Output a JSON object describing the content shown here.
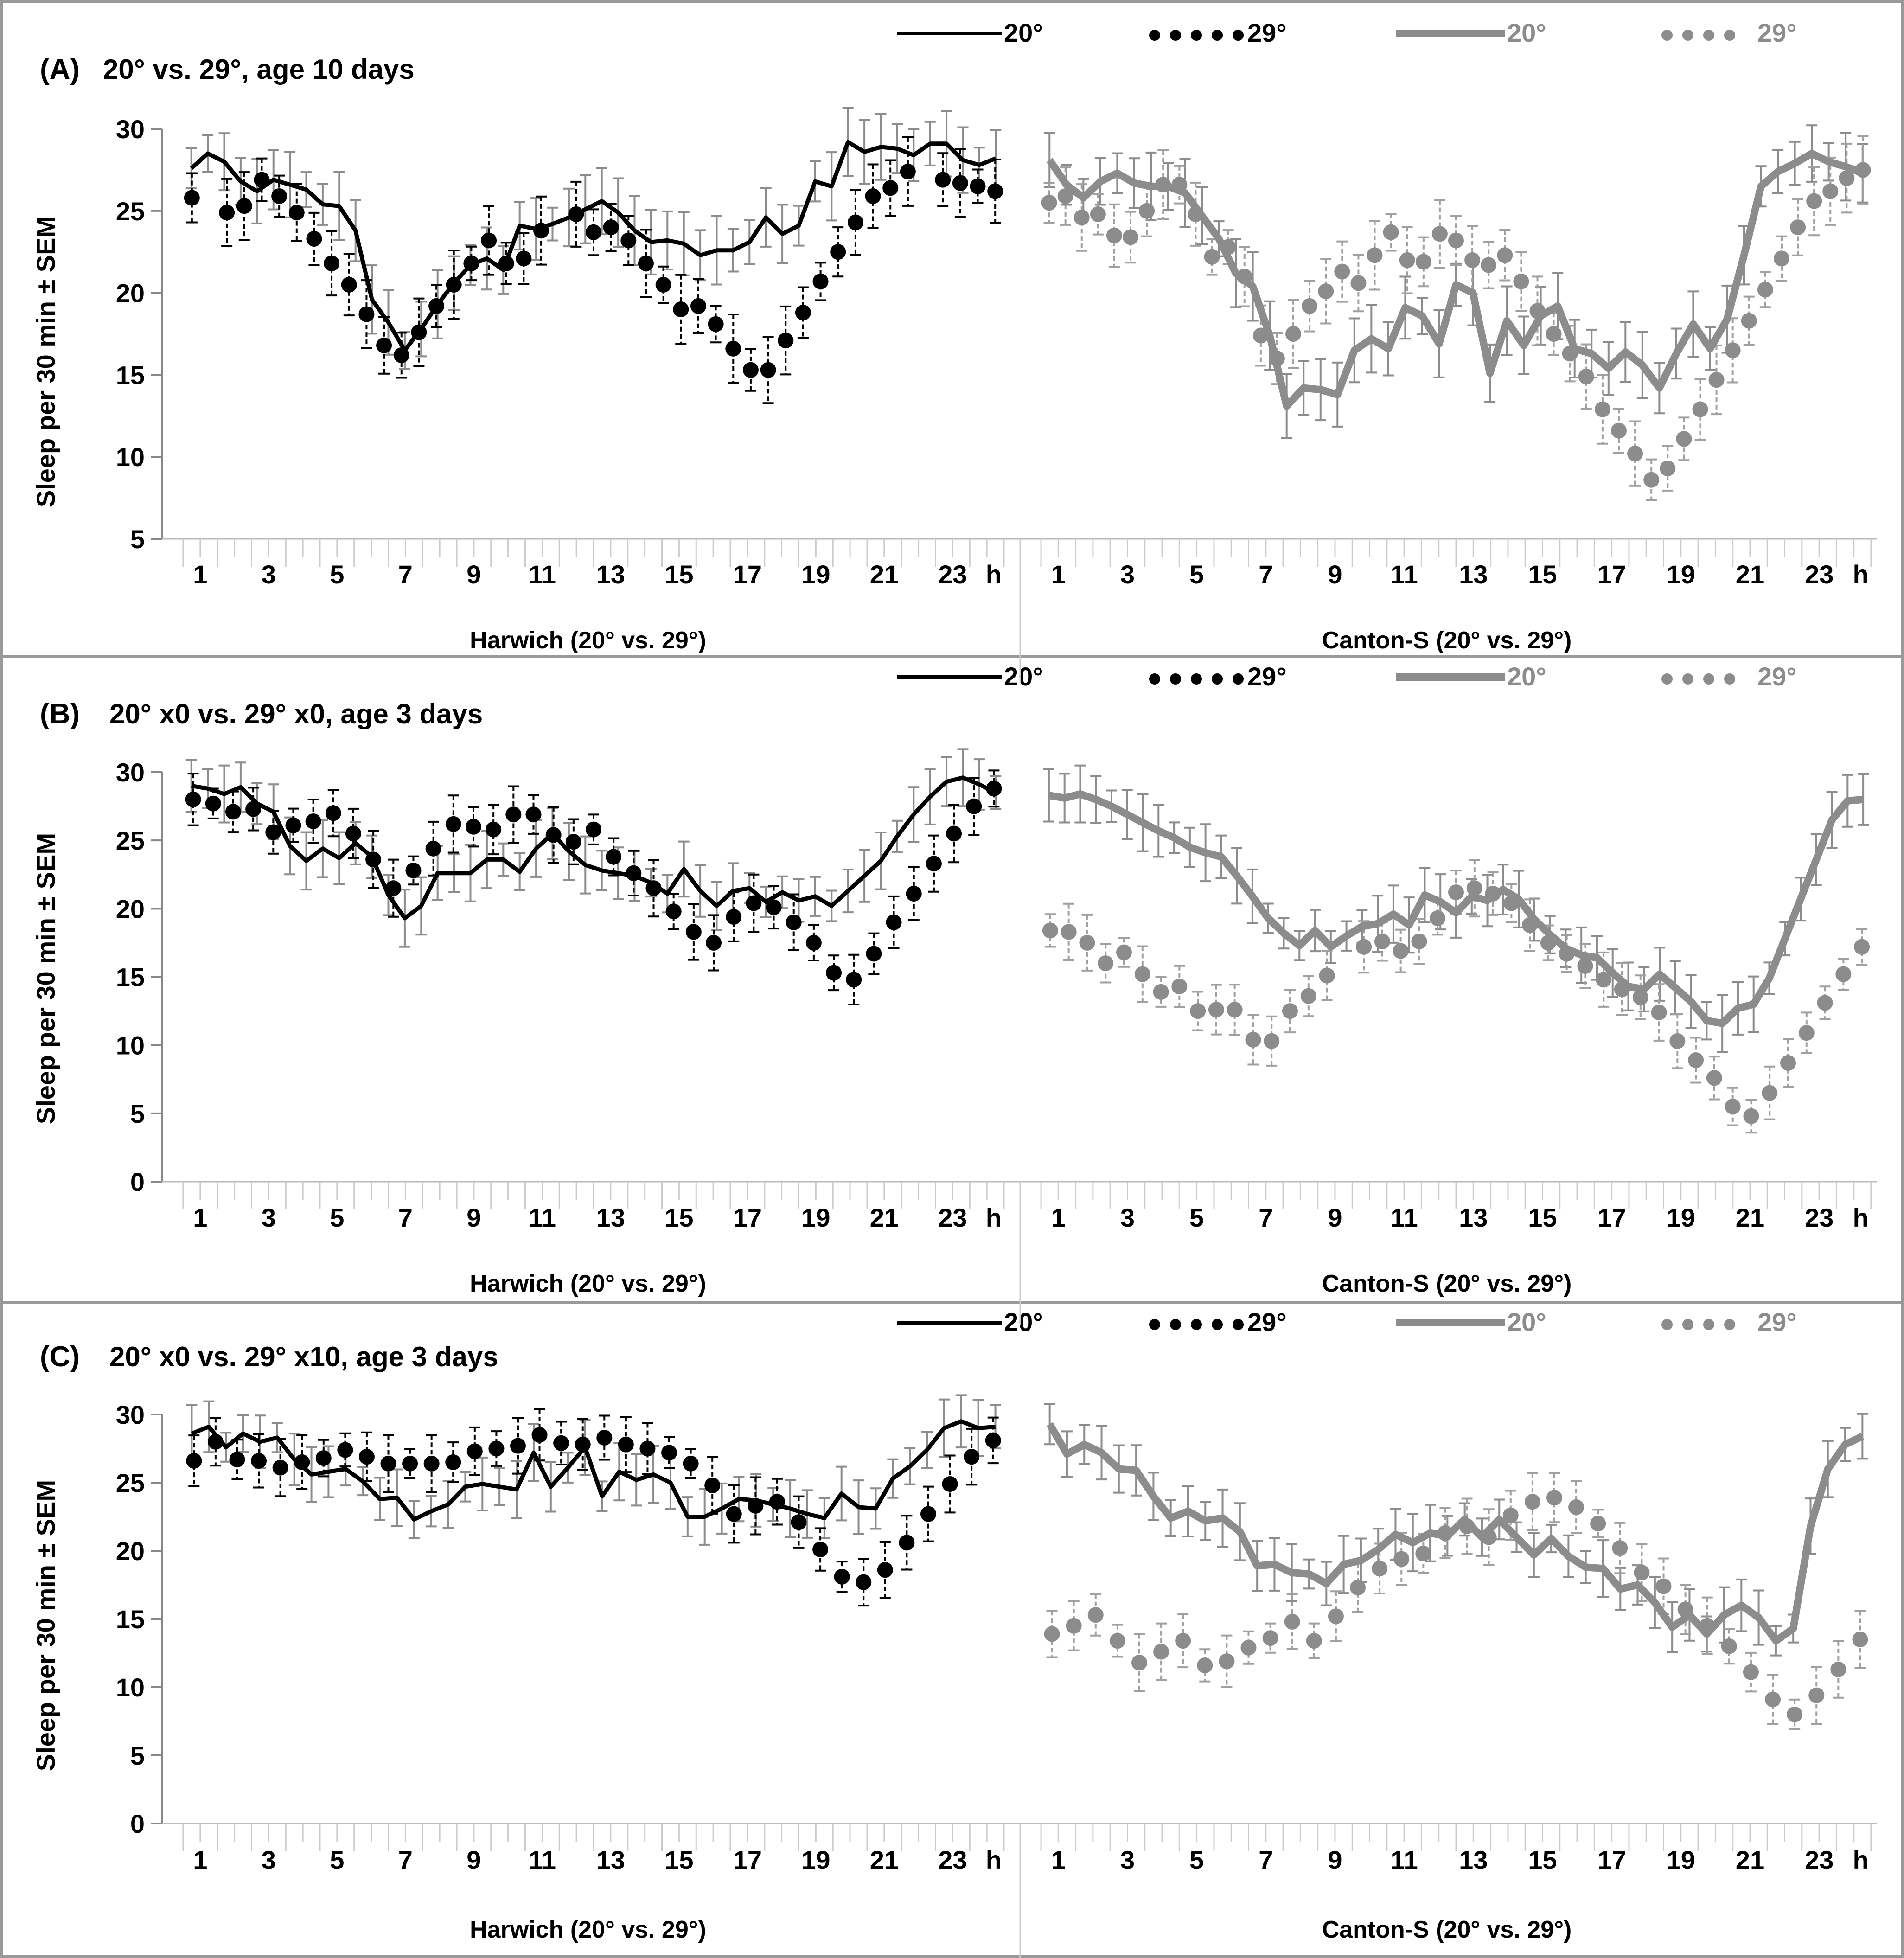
{
  "figure": {
    "y_axis_label": "Sleep per 30 min ± SEM",
    "hour_unit": "h"
  },
  "legend": [
    {
      "label": "20°",
      "style": "solid",
      "color": "#000000"
    },
    {
      "label": "29°",
      "style": "dots",
      "color": "#000000"
    },
    {
      "label": "20°",
      "style": "solid-thick",
      "color": "#8c8c8c"
    },
    {
      "label": "29°",
      "style": "dots",
      "color": "#8c8c8c"
    }
  ],
  "colors": {
    "harwich": "#000000",
    "canton": "#8c8c8c",
    "err_harwich_20": "#8c8c8c",
    "err_canton_29": "#a0a0a0"
  },
  "chart_data": [
    {
      "panel_label": "(A)",
      "title": "20° vs. 29°, age 10 days",
      "type": "line",
      "ylim": [
        5,
        30
      ],
      "yticks": [
        5,
        10,
        15,
        20,
        25,
        30
      ],
      "x_tick_labels": [
        "1",
        "3",
        "5",
        "7",
        "9",
        "11",
        "13",
        "15",
        "17",
        "19",
        "21",
        "23"
      ],
      "groups": [
        {
          "name": "Harwich (20° vs. 29°)",
          "series_20": [
            27.6,
            28.5,
            28.0,
            26.8,
            26.2,
            26.9,
            26.6,
            26.3,
            25.4,
            25.3,
            23.8,
            19.6,
            18.2,
            16.5,
            17.8,
            19.3,
            20.6,
            21.7,
            22.1,
            21.4,
            24.1,
            23.9,
            24.2,
            24.6,
            25.1,
            25.6,
            24.9,
            23.8,
            23.1,
            23.2,
            23.0,
            22.3,
            22.6,
            22.6,
            23.1,
            24.6,
            23.6,
            24.1,
            26.8,
            26.5,
            29.2,
            28.6,
            28.9,
            28.8,
            28.4,
            29.1,
            29.1,
            28.1,
            27.8,
            28.2
          ],
          "series_29": [
            25.8,
            null,
            24.9,
            25.3,
            26.9,
            25.9,
            24.9,
            23.3,
            21.8,
            20.5,
            18.7,
            16.8,
            16.2,
            17.6,
            19.2,
            20.5,
            21.8,
            23.2,
            21.8,
            22.1,
            23.8,
            null,
            24.8,
            23.7,
            24.0,
            23.2,
            21.8,
            20.5,
            19.0,
            19.2,
            18.1,
            16.6,
            15.3,
            15.3,
            17.1,
            18.8,
            20.7,
            22.5,
            24.3,
            25.9,
            26.4,
            27.4,
            null,
            26.9,
            26.7,
            26.5,
            26.2
          ]
        },
        {
          "name": "Canton-S (20° vs. 29°)",
          "series_20": [
            28.1,
            26.6,
            25.8,
            26.8,
            27.3,
            26.7,
            26.5,
            26.5,
            26.1,
            24.7,
            23.3,
            21.2,
            20.4,
            17.4,
            13.1,
            14.2,
            14.1,
            13.8,
            16.5,
            17.2,
            16.6,
            19.1,
            18.6,
            16.9,
            20.5,
            20.0,
            15.1,
            18.3,
            16.8,
            18.6,
            19.2,
            16.6,
            16.3,
            15.4,
            16.4,
            15.6,
            14.2,
            16.3,
            18.1,
            16.6,
            18.4,
            22.3,
            26.5,
            27.4,
            27.9,
            28.5,
            28.0,
            27.7,
            27.3
          ],
          "series_29": [
            25.5,
            25.9,
            24.6,
            24.8,
            23.5,
            23.4,
            25.0,
            26.6,
            26.6,
            24.8,
            22.2,
            22.8,
            21.0,
            17.4,
            16.0,
            17.5,
            19.2,
            20.1,
            21.3,
            20.6,
            22.3,
            23.7,
            22.0,
            21.9,
            23.6,
            23.2,
            22.0,
            21.7,
            22.3,
            20.7,
            18.9,
            17.5,
            16.3,
            14.9,
            12.9,
            11.6,
            10.2,
            8.6,
            9.3,
            11.1,
            12.9,
            14.7,
            16.5,
            18.3,
            20.2,
            22.1,
            24.0,
            25.6,
            26.2,
            27.0,
            27.5
          ]
        }
      ]
    },
    {
      "panel_label": "(B)",
      "title": "20° x0 vs. 29° x0, age 3 days",
      "type": "line",
      "ylim": [
        0,
        30
      ],
      "yticks": [
        0,
        5,
        10,
        15,
        20,
        25,
        30
      ],
      "x_tick_labels": [
        "1",
        "3",
        "5",
        "7",
        "9",
        "11",
        "13",
        "15",
        "17",
        "19",
        "21",
        "23"
      ],
      "groups": [
        {
          "name": "Harwich (20° vs. 29°)",
          "series_20": [
            29.0,
            28.8,
            28.4,
            28.9,
            27.7,
            27.1,
            24.6,
            23.5,
            24.4,
            23.7,
            24.8,
            23.8,
            21.0,
            19.3,
            20.2,
            22.6,
            22.6,
            22.6,
            23.6,
            23.6,
            22.7,
            24.4,
            25.5,
            24.2,
            23.2,
            22.8,
            22.6,
            22.4,
            21.9,
            21.1,
            22.9,
            21.3,
            20.2,
            21.3,
            21.5,
            20.5,
            21.2,
            20.6,
            20.9,
            20.2,
            21.3,
            22.4,
            23.5,
            25.3,
            26.9,
            28.2,
            29.3,
            29.6,
            29.1,
            28.5
          ],
          "series_29": [
            28.0,
            27.7,
            27.1,
            27.3,
            25.6,
            26.1,
            26.4,
            27.0,
            25.5,
            23.6,
            21.5,
            22.8,
            24.4,
            26.2,
            26.0,
            25.8,
            26.9,
            26.9,
            25.4,
            24.9,
            25.8,
            23.8,
            22.6,
            21.5,
            19.8,
            18.3,
            17.5,
            19.4,
            20.4,
            20.1,
            19.0,
            17.5,
            15.3,
            14.8,
            16.7,
            19.0,
            21.1,
            23.3,
            25.5,
            27.5,
            28.8
          ]
        },
        {
          "name": "Canton-S (20° vs. 29°)",
          "series_20": [
            28.3,
            28.1,
            28.4,
            28.0,
            27.5,
            26.9,
            26.3,
            25.7,
            25.2,
            24.5,
            24.1,
            23.8,
            22.4,
            20.9,
            19.3,
            18.2,
            17.3,
            18.4,
            17.2,
            18.0,
            18.7,
            18.9,
            19.6,
            18.8,
            21.0,
            20.5,
            19.7,
            20.9,
            20.6,
            21.4,
            20.7,
            19.2,
            18.1,
            17.1,
            16.6,
            16.4,
            15.3,
            14.3,
            14.1,
            15.2,
            14.2,
            13.2,
            11.8,
            11.6,
            12.7,
            13.0,
            14.9,
            17.8,
            20.7,
            23.6,
            26.5,
            27.9,
            28.0
          ],
          "series_29": [
            18.4,
            18.3,
            17.5,
            16.0,
            16.8,
            15.2,
            13.9,
            14.3,
            12.5,
            12.6,
            12.6,
            10.4,
            10.3,
            12.5,
            13.6,
            15.1,
            null,
            17.2,
            17.6,
            16.9,
            17.6,
            19.3,
            21.2,
            21.5,
            21.1,
            20.4,
            18.8,
            17.5,
            16.7,
            15.8,
            14.8,
            14.1,
            13.5,
            12.4,
            10.3,
            8.9,
            7.6,
            5.5,
            4.8,
            6.5,
            8.7,
            10.9,
            13.1,
            15.2,
            17.2
          ]
        }
      ]
    },
    {
      "panel_label": "(C)",
      "title": "20° x0 vs. 29° x10, age 3 days",
      "type": "line",
      "ylim": [
        0,
        30
      ],
      "yticks": [
        0,
        5,
        10,
        15,
        20,
        25,
        30
      ],
      "x_tick_labels": [
        "1",
        "3",
        "5",
        "7",
        "9",
        "11",
        "13",
        "15",
        "17",
        "19",
        "21",
        "23"
      ],
      "groups": [
        {
          "name": "Harwich (20° vs. 29°)",
          "series_20": [
            28.6,
            29.1,
            27.6,
            28.6,
            28.0,
            28.3,
            26.7,
            25.6,
            25.8,
            26.0,
            25.1,
            23.8,
            23.9,
            22.3,
            22.9,
            23.4,
            24.7,
            24.9,
            24.7,
            24.5,
            27.2,
            24.7,
            26.1,
            27.6,
            24.0,
            25.8,
            25.2,
            25.6,
            25.0,
            22.5,
            22.5,
            23.1,
            23.8,
            23.7,
            23.4,
            23.1,
            22.7,
            22.4,
            24.2,
            23.2,
            23.1,
            25.3,
            26.2,
            27.4,
            29.0,
            29.5,
            29.0,
            29.1
          ],
          "series_29": [
            26.6,
            28.0,
            26.7,
            26.6,
            26.1,
            26.5,
            26.8,
            27.4,
            26.9,
            26.4,
            26.4,
            26.4,
            26.5,
            27.3,
            27.5,
            27.7,
            28.5,
            27.9,
            27.8,
            28.3,
            27.8,
            27.5,
            27.2,
            26.4,
            24.8,
            22.7,
            23.3,
            23.6,
            22.1,
            20.1,
            18.1,
            17.7,
            18.6,
            20.6,
            22.7,
            24.9,
            26.9,
            28.1
          ]
        },
        {
          "name": "Canton-S (20° vs. 29°)",
          "series_20": [
            29.3,
            27.1,
            27.8,
            27.2,
            26.0,
            25.9,
            24.0,
            22.4,
            22.9,
            22.2,
            22.4,
            21.4,
            18.9,
            19.0,
            18.4,
            18.3,
            17.6,
            19.0,
            19.3,
            20.1,
            21.2,
            20.6,
            21.3,
            21.1,
            22.3,
            21.0,
            22.3,
            21.0,
            19.7,
            20.9,
            19.6,
            18.8,
            18.7,
            17.2,
            17.5,
            16.2,
            14.4,
            15.3,
            13.9,
            15.3,
            16.0,
            15.1,
            13.4,
            14.3,
            21.8,
            26.0,
            27.8,
            28.4
          ],
          "series_29": [
            13.9,
            14.5,
            15.3,
            13.4,
            11.8,
            12.6,
            13.4,
            11.6,
            11.9,
            12.9,
            13.6,
            14.8,
            13.4,
            15.2,
            17.3,
            18.7,
            19.4,
            19.8,
            21.3,
            21.8,
            21.0,
            22.6,
            23.6,
            23.9,
            23.2,
            22.0,
            20.2,
            18.4,
            17.4,
            15.7,
            14.5,
            13.0,
            11.1,
            9.1,
            8.0,
            9.4,
            11.3,
            13.5
          ]
        }
      ]
    }
  ]
}
